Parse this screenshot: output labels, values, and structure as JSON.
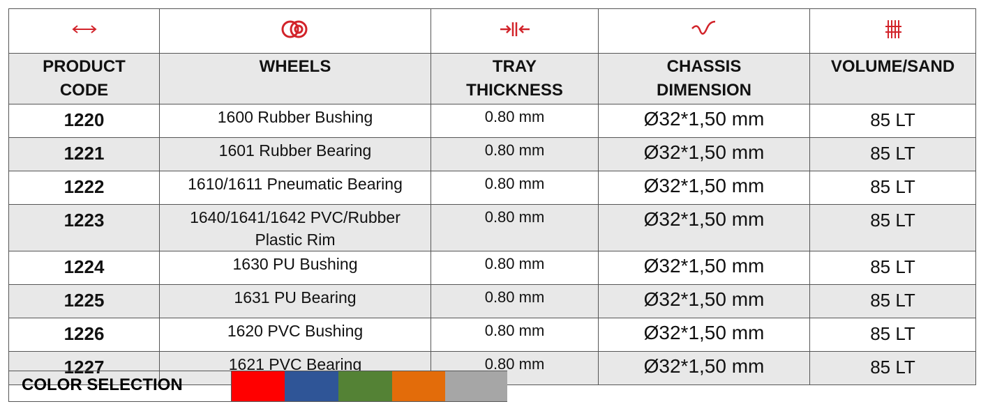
{
  "table": {
    "columns": [
      "PRODUCT CODE",
      "WHEELS",
      "TRAY THICKNESS",
      "CHASSIS DIMENSION",
      "VOLUME/SAND"
    ],
    "rows": [
      [
        "1220",
        "1600 Rubber Bushing",
        "0.80 mm",
        "Ø32*1,50 mm",
        "85 LT"
      ],
      [
        "1221",
        "1601 Rubber Bearing",
        "0.80 mm",
        "Ø32*1,50 mm",
        "85 LT"
      ],
      [
        "1222",
        "1610/1611 Pneumatic Bearing",
        "0.80 mm",
        "Ø32*1,50 mm",
        "85 LT"
      ],
      [
        "1223",
        "1640/1641/1642 PVC/Rubber Plastic Rim",
        "0.80 mm",
        "Ø32*1,50 mm",
        "85 LT"
      ],
      [
        "1224",
        "1630 PU Bushing",
        "0.80 mm",
        "Ø32*1,50 mm",
        "85 LT"
      ],
      [
        "1225",
        "1631 PU Bearing",
        "0.80 mm",
        "Ø32*1,50 mm",
        "85 LT"
      ],
      [
        "1226",
        "1620 PVC Bushing",
        "0.80 mm",
        "Ø32*1,50 mm",
        "85 LT"
      ],
      [
        "1227",
        "1621 PVC Bearing",
        "0.80 mm",
        "Ø32*1,50 mm",
        "85 LT"
      ]
    ]
  },
  "color_selection": {
    "label": "COLOR SELECTION",
    "colors": [
      "#ff0000",
      "#2f5597",
      "#548235",
      "#e36c0a",
      "#a6a6a6"
    ]
  }
}
